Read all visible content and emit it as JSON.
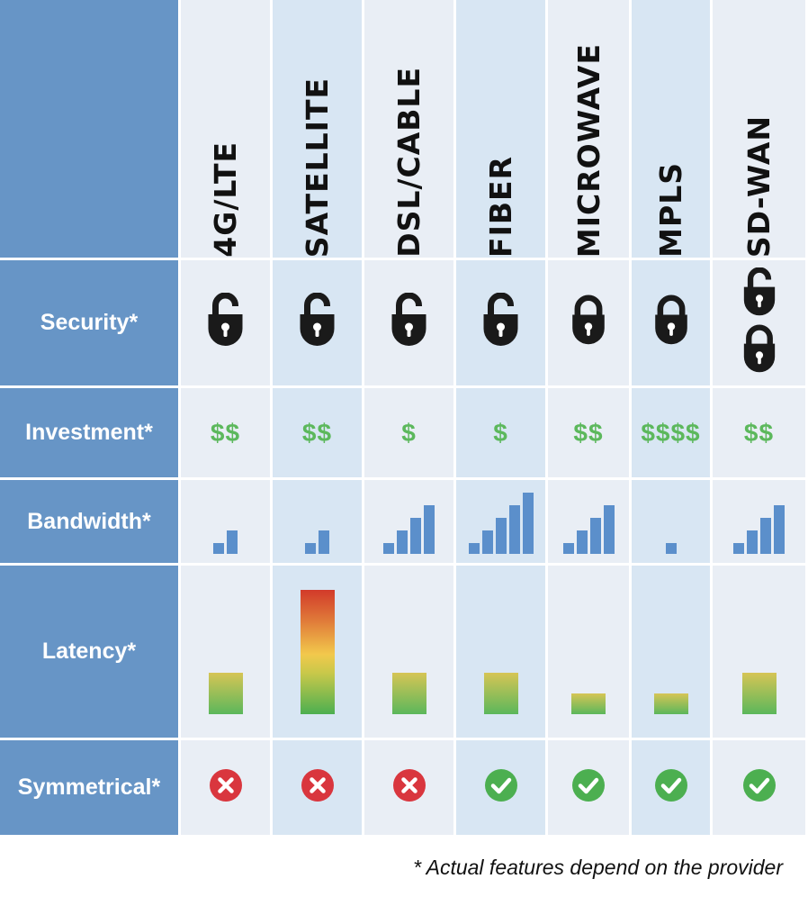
{
  "chart_data": {
    "type": "table",
    "columns": [
      "4G/LTE",
      "SATELLITE",
      "DSL/CABLE",
      "FIBER",
      "MICROWAVE",
      "MPLS",
      "SD-WAN"
    ],
    "rows": [
      "Security*",
      "Investment*",
      "Bandwidth*",
      "Latency*",
      "Symmetrical*"
    ],
    "security": [
      "unlocked",
      "unlocked",
      "unlocked",
      "unlocked",
      "locked",
      "locked",
      "unlocked+locked"
    ],
    "investment": [
      "$$",
      "$$",
      "$",
      "$",
      "$$",
      "$$$$",
      "$$"
    ],
    "bandwidth_level": [
      2,
      2,
      4,
      5,
      4,
      1,
      4
    ],
    "bandwidth_max": 5,
    "latency_level": [
      2,
      6,
      2,
      2,
      1,
      1,
      2
    ],
    "latency_max": 6,
    "symmetrical": [
      false,
      false,
      false,
      true,
      true,
      true,
      true
    ],
    "footnote": "* Actual features depend on the provider"
  },
  "colors": {
    "header_blue": "#6795c6",
    "cell_light": "#e9eef5",
    "cell_dark": "#d8e6f3",
    "money_green": "#5cb85c",
    "bar_blue": "#5b8fcb",
    "yes_green": "#4caf50",
    "no_red": "#d9363e",
    "lock_black": "#1a1a1a"
  }
}
